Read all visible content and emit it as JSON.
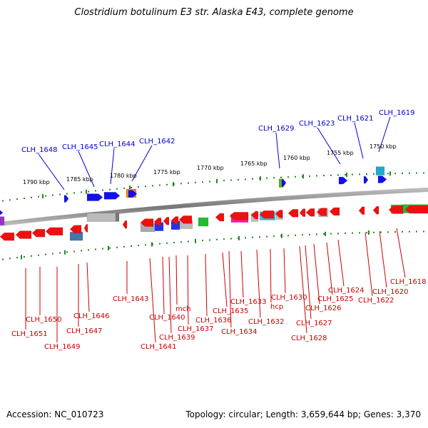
{
  "title": "Clostridium botulinum E3 str. Alaska E43, complete genome",
  "footer": {
    "accession": "Accession: NC_010723",
    "summary": "Topology: circular; Length: 3,659,644 bp; Genes: 3,370"
  },
  "scale_ticks": [
    "1790 kbp",
    "1785 kbp",
    "1780 kbp",
    "1775 kbp",
    "1770 kbp",
    "1765 kbp",
    "1760 kbp",
    "1755 kbp",
    "1750 kbp"
  ],
  "top_labels": [
    "CLH_1648",
    "CLH_1645",
    "CLH_1644",
    "CLH_1642",
    "CLH_1629",
    "CLH_1623",
    "CLH_1621",
    "CLH_1619"
  ],
  "bottom_labels": [
    "CLH_1651",
    "CLH_1650",
    "CLH_1649",
    "CLH_1647",
    "CLH_1646",
    "CLH_1643",
    "CLH_1641",
    "CLH_1640",
    "CLH_1639",
    "mch",
    "CLH_1637",
    "CLH_1636",
    "CLH_1635",
    "CLH_1634",
    "CLH_1633",
    "CLH_1632",
    "hcp",
    "CLH_1630",
    "CLH_1628",
    "CLH_1627",
    "CLH_1626",
    "CLH_1625",
    "CLH_1624",
    "CLH_1622",
    "CLH_1620",
    "CLH_1618"
  ],
  "colors": {
    "forward_gene": "#1010ee",
    "reverse_gene": "#ee1010",
    "top_label": "#0000cc",
    "bottom_label": "#cc0000",
    "backbone": "#888888",
    "tick_marks": "#228822"
  }
}
